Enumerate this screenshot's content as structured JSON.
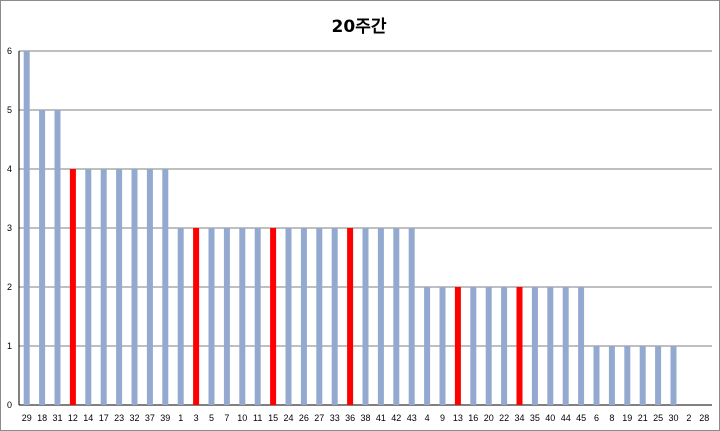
{
  "chart_data": {
    "type": "bar",
    "title": "20주간",
    "xlabel": "",
    "ylabel": "",
    "ylim": [
      0,
      6
    ],
    "yticks": [
      0,
      1,
      2,
      3,
      4,
      5,
      6
    ],
    "grid": true,
    "categories": [
      "29",
      "18",
      "31",
      "12",
      "14",
      "17",
      "23",
      "32",
      "37",
      "39",
      "1",
      "3",
      "5",
      "7",
      "10",
      "11",
      "15",
      "24",
      "26",
      "27",
      "33",
      "36",
      "38",
      "41",
      "42",
      "43",
      "4",
      "9",
      "13",
      "16",
      "20",
      "22",
      "34",
      "35",
      "40",
      "44",
      "45",
      "6",
      "8",
      "19",
      "21",
      "25",
      "30",
      "2",
      "28"
    ],
    "values": [
      6,
      5,
      5,
      4,
      4,
      4,
      4,
      4,
      4,
      4,
      3,
      3,
      3,
      3,
      3,
      3,
      3,
      3,
      3,
      3,
      3,
      3,
      3,
      3,
      3,
      3,
      2,
      2,
      2,
      2,
      2,
      2,
      2,
      2,
      2,
      2,
      2,
      1,
      1,
      1,
      1,
      1,
      1,
      0,
      0
    ],
    "highlighted": [
      "12",
      "3",
      "15",
      "36",
      "13",
      "34"
    ],
    "colors": {
      "bar": "#94A9CF",
      "highlight": "#FF0000",
      "grid": "#7f7f7f"
    }
  }
}
